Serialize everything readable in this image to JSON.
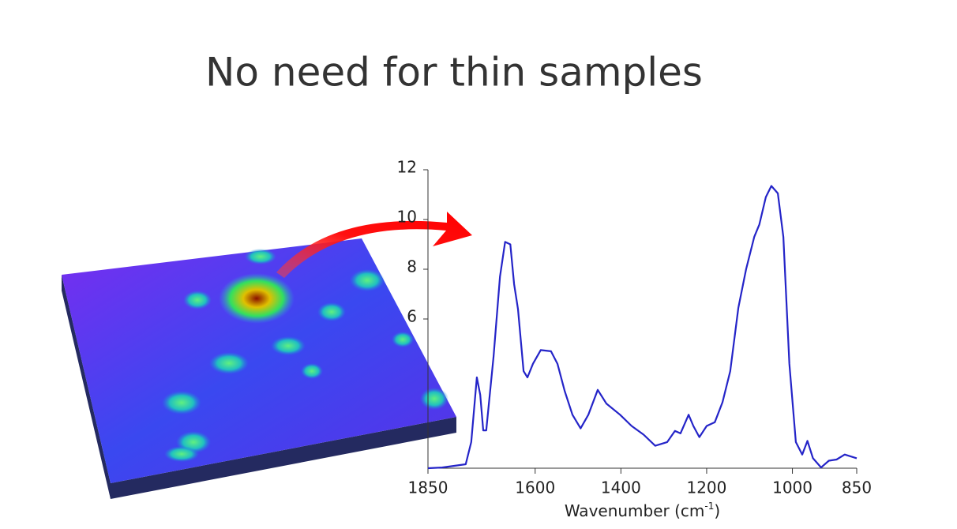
{
  "chart_data": {
    "type": "line",
    "title": "No need for thin samples",
    "xlabel": "Wavenumber (cm",
    "xlabel_sup": "-1",
    "xlabel_end": ")",
    "x": [
      1850,
      1817,
      1762,
      1749,
      1736,
      1728,
      1721,
      1714,
      1697,
      1682,
      1670,
      1658,
      1649,
      1640,
      1627,
      1618,
      1605,
      1587,
      1563,
      1548,
      1531,
      1513,
      1494,
      1476,
      1454,
      1434,
      1402,
      1375,
      1347,
      1320,
      1292,
      1274,
      1261,
      1242,
      1231,
      1217,
      1200,
      1181,
      1163,
      1145,
      1126,
      1108,
      1089,
      1077,
      1062,
      1049,
      1034,
      1021,
      1007,
      992,
      977,
      965,
      952,
      933,
      915,
      897,
      878,
      850
    ],
    "values": [
      0,
      0.03,
      0.16,
      1.05,
      3.65,
      2.95,
      1.52,
      1.52,
      4.5,
      7.7,
      9.1,
      9.0,
      7.4,
      6.4,
      3.9,
      3.65,
      4.2,
      4.75,
      4.7,
      4.2,
      3.1,
      2.15,
      1.6,
      2.15,
      3.15,
      2.6,
      2.15,
      1.7,
      1.35,
      0.9,
      1.05,
      1.5,
      1.4,
      2.15,
      1.7,
      1.25,
      1.7,
      1.85,
      2.65,
      3.9,
      6.45,
      8.0,
      9.3,
      9.8,
      10.9,
      11.35,
      11.05,
      9.3,
      4.2,
      1.05,
      0.55,
      1.1,
      0.4,
      0.03,
      0.3,
      0.35,
      0.55,
      0.4
    ],
    "color": "#2424c8",
    "xlim": [
      1850,
      850
    ],
    "xticks": [
      1850,
      1600,
      1400,
      1200,
      1000,
      850
    ],
    "ylim": [
      0,
      12
    ],
    "yticks": [
      6,
      8,
      10,
      12
    ]
  }
}
